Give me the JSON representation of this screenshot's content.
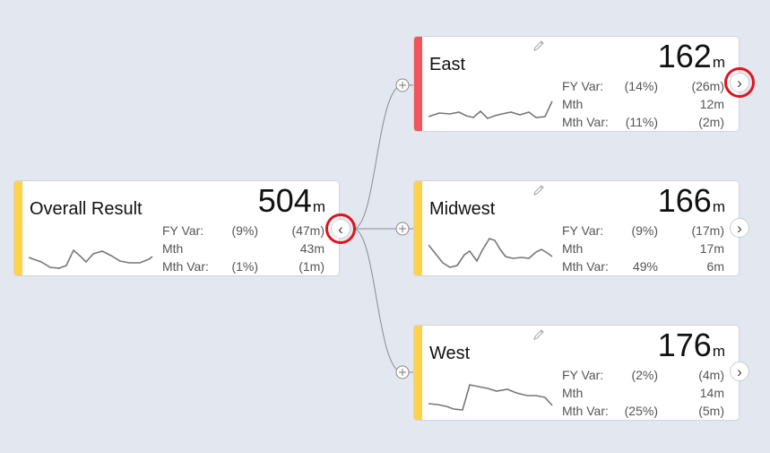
{
  "colors": {
    "ok": "#ffd24a",
    "bad": "#f2545b",
    "link": "#888888"
  },
  "root": {
    "title": "Overall Result",
    "value": "504",
    "unit": "m",
    "metrics": [
      {
        "label": "FY Var:",
        "pct": "(9%)",
        "value": "(47m)"
      },
      {
        "label": "Mth",
        "pct": "",
        "value": "43m"
      },
      {
        "label": "Mth Var:",
        "pct": "(1%)",
        "value": "(1m)"
      }
    ],
    "collapse_icon": "‹"
  },
  "children": [
    {
      "title": "East",
      "value": "162",
      "unit": "m",
      "metrics": [
        {
          "label": "FY Var:",
          "pct": "(14%)",
          "value": "(26m)"
        },
        {
          "label": "Mth",
          "pct": "",
          "value": "12m"
        },
        {
          "label": "Mth Var:",
          "pct": "(11%)",
          "value": "(2m)"
        }
      ],
      "expand_icon": "›"
    },
    {
      "title": "Midwest",
      "value": "166",
      "unit": "m",
      "metrics": [
        {
          "label": "FY Var:",
          "pct": "(9%)",
          "value": "(17m)"
        },
        {
          "label": "Mth",
          "pct": "",
          "value": "17m"
        },
        {
          "label": "Mth Var:",
          "pct": "49%",
          "value": "6m"
        }
      ],
      "expand_icon": "›"
    },
    {
      "title": "West",
      "value": "176",
      "unit": "m",
      "metrics": [
        {
          "label": "FY Var:",
          "pct": "(2%)",
          "value": "(4m)"
        },
        {
          "label": "Mth",
          "pct": "",
          "value": "14m"
        },
        {
          "label": "Mth Var:",
          "pct": "(25%)",
          "value": "(5m)"
        }
      ],
      "expand_icon": "›"
    }
  ]
}
